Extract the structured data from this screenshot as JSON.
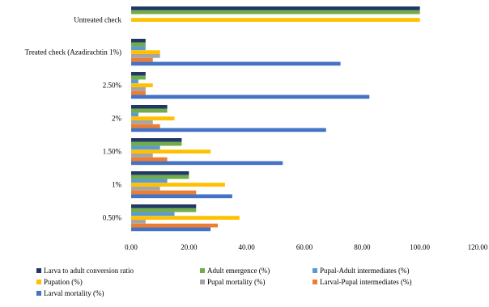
{
  "chart_data": {
    "type": "bar",
    "orientation": "horizontal",
    "title": "",
    "xlabel": "",
    "ylabel": "",
    "xlim": [
      0,
      120
    ],
    "xticks": [
      0,
      20,
      40,
      60,
      80,
      100,
      120
    ],
    "xtick_labels": [
      "0.00",
      "20.00",
      "40.00",
      "60.00",
      "80.00",
      "100.00",
      "120.00"
    ],
    "grid": false,
    "legend_position": "bottom",
    "categories": [
      "Untreated check",
      "Treated check (Azadirachtin 1%)",
      "2.50%",
      "2%",
      "1.50%",
      "1%",
      "0.50%"
    ],
    "series": [
      {
        "name": "Larva to adult conversion ratio",
        "color": "#203864",
        "values": [
          100,
          5,
          5,
          12.5,
          17.5,
          20,
          22.5
        ]
      },
      {
        "name": "Adult emergence (%)",
        "color": "#70ad47",
        "values": [
          100,
          5,
          5,
          12.5,
          17.5,
          20,
          22.5
        ]
      },
      {
        "name": "Pupal-Adult intermediates (%)",
        "color": "#5b9bd5",
        "values": [
          0,
          5,
          2.5,
          2.5,
          10,
          12.5,
          15
        ]
      },
      {
        "name": "Pupation (%)",
        "color": "#ffc000",
        "values": [
          100,
          10,
          7.5,
          15,
          27.5,
          32.5,
          37.5
        ]
      },
      {
        "name": "Pupal mortality (%)",
        "color": "#a5a5a5",
        "values": [
          0,
          10,
          5,
          7.5,
          7.5,
          10,
          5
        ]
      },
      {
        "name": "Larval-Pupal intermediates (%)",
        "color": "#ed7d31",
        "values": [
          0,
          7.5,
          5,
          10,
          12.5,
          22.5,
          30
        ]
      },
      {
        "name": "Larval mortality (%)",
        "color": "#4472c4",
        "values": [
          0,
          72.5,
          82.5,
          67.5,
          52.5,
          35,
          27.5
        ]
      }
    ]
  }
}
